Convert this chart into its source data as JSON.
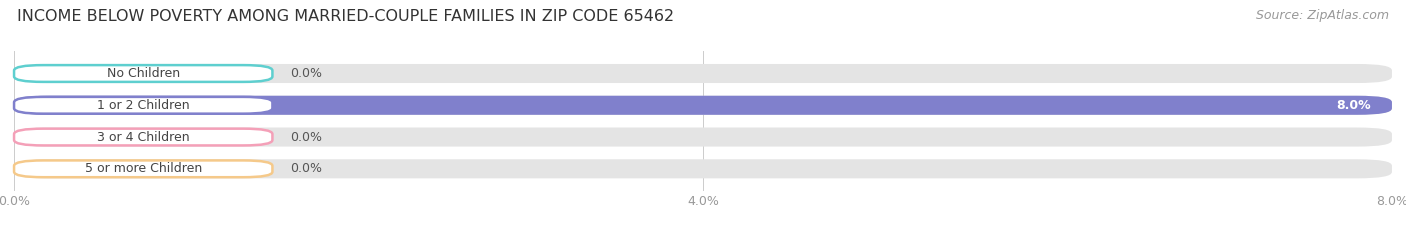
{
  "title": "INCOME BELOW POVERTY AMONG MARRIED-COUPLE FAMILIES IN ZIP CODE 65462",
  "source": "Source: ZipAtlas.com",
  "categories": [
    "No Children",
    "1 or 2 Children",
    "3 or 4 Children",
    "5 or more Children"
  ],
  "values": [
    0.0,
    8.0,
    0.0,
    0.0
  ],
  "bar_colors": [
    "#5ecfcf",
    "#8080cc",
    "#f4a0b8",
    "#f5c98a"
  ],
  "xlim": [
    0,
    8.0
  ],
  "xticks": [
    0.0,
    4.0,
    8.0
  ],
  "xticklabels": [
    "0.0%",
    "4.0%",
    "8.0%"
  ],
  "background_color": "#ffffff",
  "bar_background_color": "#e4e4e4",
  "title_fontsize": 11.5,
  "source_fontsize": 9,
  "bar_label_fontsize": 9,
  "category_fontsize": 9,
  "figsize": [
    14.06,
    2.33
  ],
  "dpi": 100
}
